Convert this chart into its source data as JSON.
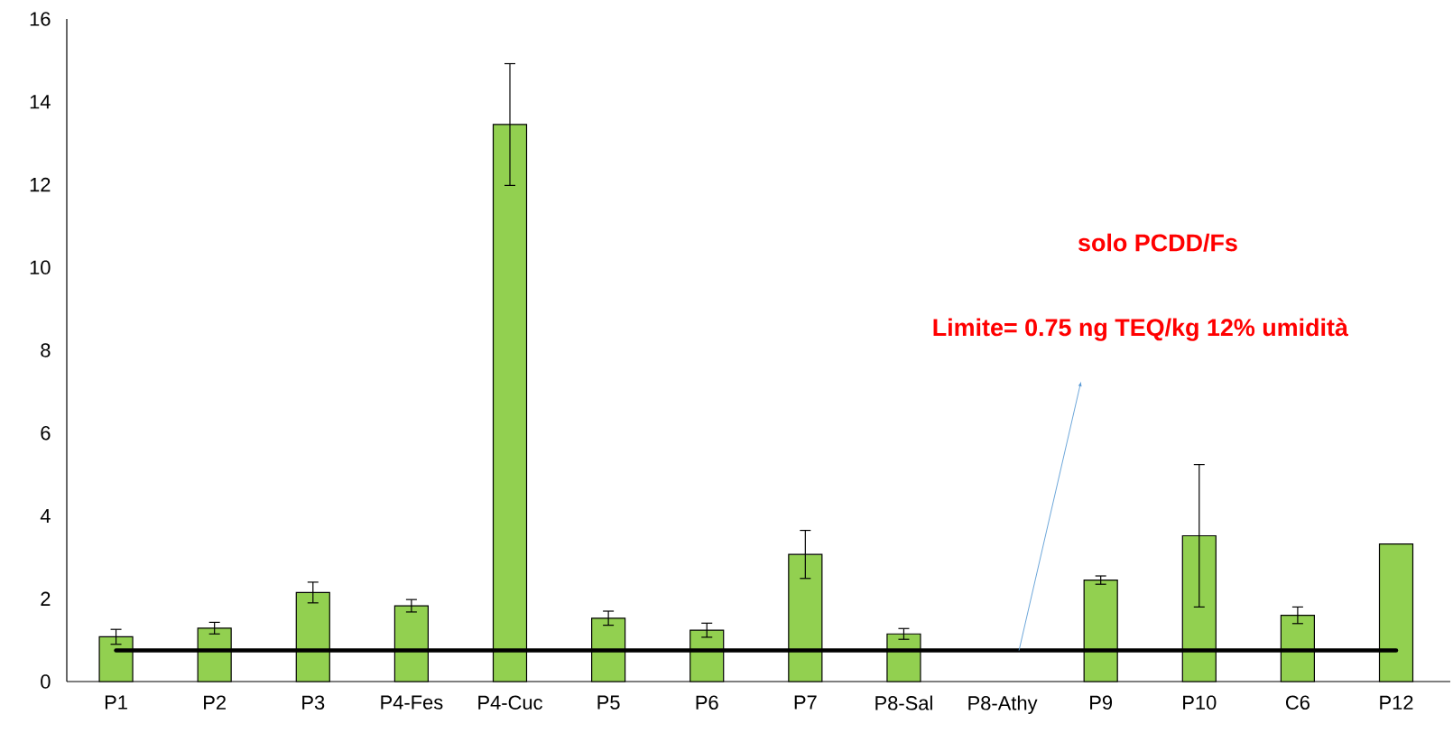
{
  "chart_data": {
    "type": "bar",
    "categories": [
      "P1",
      "P2",
      "P3",
      "P4-Fes",
      "P4-Cuc",
      "P5",
      "P6",
      "P7",
      "P8-Sal",
      "P8-Athy",
      "P9",
      "P10",
      "C6",
      "P12"
    ],
    "values": [
      1.08,
      1.29,
      2.15,
      1.83,
      13.45,
      1.53,
      1.24,
      3.07,
      1.15,
      null,
      2.45,
      3.52,
      1.6,
      3.32
    ],
    "errors": [
      0.18,
      0.14,
      0.25,
      0.15,
      1.47,
      0.17,
      0.17,
      0.58,
      0.13,
      null,
      0.1,
      1.72,
      0.2,
      null
    ],
    "color": "#92d050",
    "ylim": [
      0,
      16
    ],
    "yticks": [
      0,
      2,
      4,
      6,
      8,
      10,
      12,
      14,
      16
    ],
    "grid": false,
    "ref_lines": [
      {
        "axis": "y",
        "value": 0.75,
        "color": "#000000"
      }
    ],
    "annotations": [
      "solo PCDD/Fs",
      "Limite= 0.75 ng TEQ/kg 12% umidità"
    ]
  }
}
